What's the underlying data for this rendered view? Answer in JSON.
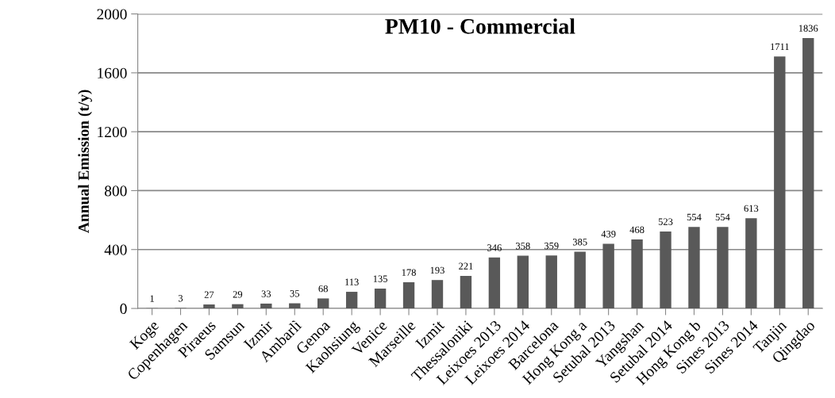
{
  "chart_data": {
    "type": "bar",
    "title": "PM10 - Commercial",
    "ylabel": "Annual Emission (t/y)",
    "categories": [
      "Koge",
      "Copenhagen",
      "Piraeus",
      "Samsun",
      "Izmir",
      "Ambarlì",
      "Genoa",
      "Kaohsiung",
      "Venice",
      "Marseille",
      "Izmit",
      "Thessaloniki",
      "Leixoes 2013",
      "Leixoes 2014",
      "Barcelona",
      "Hong Kong a",
      "Setubal 2013",
      "Yangshan",
      "Setubal 2014",
      "Hong Kong b",
      "Sines 2013",
      "Sines 2014",
      "Tanjin",
      "Qingdao"
    ],
    "values": [
      1,
      3,
      27,
      29,
      33,
      35,
      68,
      113,
      135,
      178,
      193,
      221,
      346,
      358,
      359,
      385,
      439,
      468,
      523,
      554,
      554,
      613,
      1711,
      1836
    ],
    "color": "#595959",
    "ylim": [
      0,
      2000
    ],
    "yticks": [
      0,
      400,
      800,
      1200,
      1600,
      2000
    ],
    "grid": "y",
    "data_labels": true
  }
}
